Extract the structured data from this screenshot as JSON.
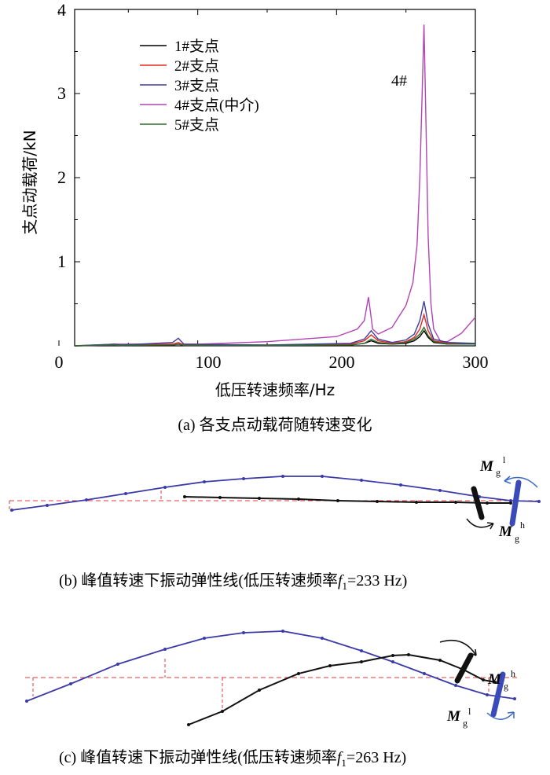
{
  "chart_data": {
    "type": "line",
    "xlabel": "低压转速频率/Hz",
    "ylabel": "支点动载荷/kN",
    "xlim": [
      0,
      300
    ],
    "ylim": [
      0,
      4
    ],
    "x_ticks": [
      "0",
      "100",
      "200",
      "300"
    ],
    "y_ticks": [
      "1",
      "2",
      "3",
      "4"
    ],
    "grid": false,
    "legend_position": "top-left",
    "annotation": "4#",
    "series": [
      {
        "name": "1#支点",
        "color": "#000000",
        "x": [
          0,
          40,
          45,
          82,
          86,
          90,
          150,
          210,
          220,
          225,
          230,
          240,
          250,
          256,
          260,
          263,
          266,
          270,
          280,
          300
        ],
        "y": [
          0,
          0.01,
          0.005,
          0.01,
          0.02,
          0.005,
          0.005,
          0.01,
          0.03,
          0.06,
          0.03,
          0.02,
          0.03,
          0.06,
          0.11,
          0.18,
          0.1,
          0.04,
          0.02,
          0.02
        ]
      },
      {
        "name": "2#支点",
        "color": "#e8281e",
        "x": [
          0,
          40,
          45,
          82,
          86,
          90,
          150,
          210,
          220,
          225,
          230,
          240,
          250,
          256,
          260,
          263,
          266,
          270,
          280,
          300
        ],
        "y": [
          0,
          0.01,
          0.005,
          0.02,
          0.04,
          0.01,
          0.01,
          0.02,
          0.06,
          0.13,
          0.06,
          0.03,
          0.05,
          0.1,
          0.2,
          0.37,
          0.18,
          0.06,
          0.03,
          0.03
        ]
      },
      {
        "name": "3#支点",
        "color": "#3d3d9a",
        "x": [
          0,
          40,
          45,
          82,
          86,
          90,
          150,
          210,
          220,
          225,
          230,
          240,
          250,
          256,
          260,
          263,
          266,
          270,
          280,
          300
        ],
        "y": [
          0,
          0.02,
          0.01,
          0.04,
          0.09,
          0.02,
          0.01,
          0.03,
          0.08,
          0.18,
          0.08,
          0.04,
          0.07,
          0.14,
          0.3,
          0.53,
          0.26,
          0.08,
          0.04,
          0.03
        ]
      },
      {
        "name": "4#支点(中介)",
        "color": "#b444b4",
        "x": [
          0,
          40,
          45,
          100,
          150,
          200,
          215,
          220,
          223,
          226,
          230,
          240,
          250,
          255,
          258,
          260,
          262,
          263,
          264,
          266,
          268,
          270,
          275,
          280,
          290,
          300
        ],
        "y": [
          0,
          0.02,
          0.02,
          0.02,
          0.05,
          0.11,
          0.2,
          0.3,
          0.58,
          0.2,
          0.14,
          0.22,
          0.48,
          0.75,
          1.2,
          2.0,
          3.2,
          3.82,
          3.0,
          1.3,
          0.5,
          0.2,
          0.05,
          0.05,
          0.15,
          0.34
        ]
      },
      {
        "name": "5#支点",
        "color": "#2e6b2e",
        "x": [
          0,
          40,
          45,
          82,
          86,
          90,
          150,
          210,
          220,
          225,
          230,
          240,
          250,
          256,
          260,
          263,
          266,
          270,
          280,
          300
        ],
        "y": [
          0,
          0.01,
          0.005,
          0.01,
          0.02,
          0.005,
          0.005,
          0.01,
          0.03,
          0.08,
          0.04,
          0.02,
          0.04,
          0.08,
          0.14,
          0.22,
          0.12,
          0.05,
          0.02,
          0.02
        ]
      }
    ]
  },
  "captions": {
    "a": "(a) 各支点动载荷随转速变化",
    "b": "(b) 峰值转速下振动弹性线(低压转速频率",
    "b_var": "f",
    "b_sub": "1",
    "b_end": "=233 Hz)",
    "c": "(c) 峰值转速下振动弹性线(低压转速频率",
    "c_var": "f",
    "c_sub": "1",
    "c_end": "=263 Hz)"
  },
  "diagram_labels": {
    "moment": "M",
    "sub": "g",
    "low": "l",
    "high": "h"
  }
}
